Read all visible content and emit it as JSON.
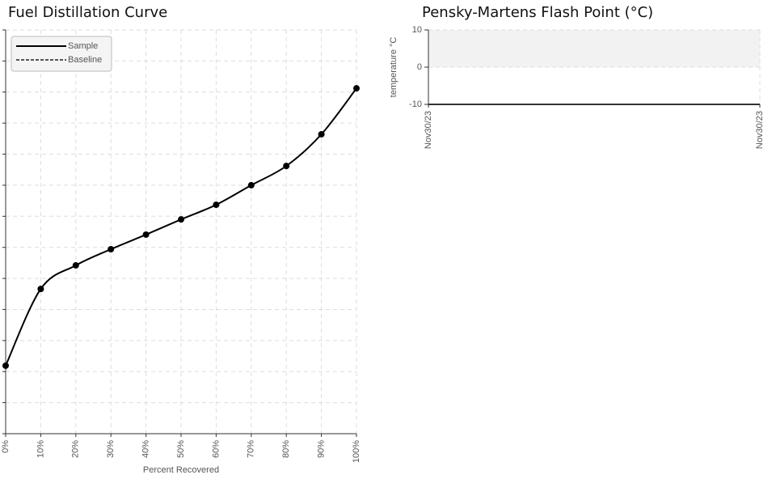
{
  "chart_data": [
    {
      "type": "line",
      "title": "Fuel Distillation Curve",
      "x_label": "Percent Recovered",
      "x": [
        0,
        10,
        20,
        30,
        40,
        50,
        60,
        70,
        80,
        90,
        100
      ],
      "xlim": [
        0,
        100
      ],
      "xticks": [
        {
          "value": 0,
          "label": "0%"
        },
        {
          "value": 10,
          "label": "10%"
        },
        {
          "value": 20,
          "label": "20%"
        },
        {
          "value": 30,
          "label": "30%"
        },
        {
          "value": 40,
          "label": "40%"
        },
        {
          "value": 50,
          "label": "50%"
        },
        {
          "value": 60,
          "label": "60%"
        },
        {
          "value": 70,
          "label": "70%"
        },
        {
          "value": 80,
          "label": "80%"
        },
        {
          "value": 90,
          "label": "90%"
        },
        {
          "value": 100,
          "label": "100%"
        }
      ],
      "ylim": [
        0,
        13
      ],
      "yticks": [
        0,
        1,
        2,
        3,
        4,
        5,
        6,
        7,
        8,
        9,
        10,
        11,
        12,
        13
      ],
      "grid": true,
      "legend": "upper left",
      "series": [
        {
          "name": "Sample",
          "color": "#000000",
          "values": [
            2.19,
            4.66,
            5.42,
            5.94,
            6.41,
            6.9,
            7.37,
            8.0,
            8.62,
            9.64,
            11.12
          ]
        },
        {
          "name": "Baseline",
          "color": "#555555",
          "dashed": true,
          "values": [
            null,
            null,
            null,
            null,
            null,
            null,
            null,
            null,
            null,
            null,
            null
          ]
        }
      ]
    },
    {
      "type": "line",
      "title": "Pensky-Martens Flash Point (°C)",
      "y_label": "temperature °C",
      "categories": [
        "Nov30/23",
        "Nov30/23"
      ],
      "ylim": [
        -10,
        10
      ],
      "yticks": [
        -10,
        0,
        10
      ],
      "grid": true,
      "band": [
        0,
        10
      ],
      "band_color": "#f2f2f2",
      "series": []
    }
  ]
}
